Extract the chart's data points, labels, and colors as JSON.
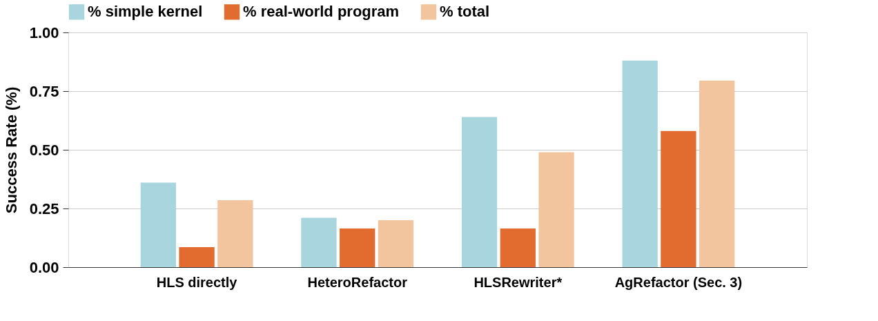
{
  "chart_data": {
    "type": "bar",
    "ylabel": "Success Rate (%)",
    "categories": [
      "HLS directly",
      "HeteroRefactor",
      "HLSRewriter*",
      "AgRefactor (Sec. 3)"
    ],
    "series": [
      {
        "name": "% simple kernel",
        "color": "#a8d5de",
        "values": [
          0.36,
          0.21,
          0.64,
          0.88
        ]
      },
      {
        "name": "% real-world program",
        "color": "#e26b2f",
        "values": [
          0.085,
          0.165,
          0.165,
          0.58
        ]
      },
      {
        "name": "% total",
        "color": "#f2c59e",
        "values": [
          0.285,
          0.2,
          0.49,
          0.795
        ]
      }
    ],
    "ylim": [
      0,
      1
    ],
    "yticks": [
      {
        "value": 0,
        "label": "0.00"
      },
      {
        "value": 0.25,
        "label": "0.25"
      },
      {
        "value": 0.5,
        "label": "0.50"
      },
      {
        "value": 0.75,
        "label": "0.75"
      },
      {
        "value": 1,
        "label": "1.00"
      }
    ],
    "grid": "y",
    "legend": "top"
  }
}
